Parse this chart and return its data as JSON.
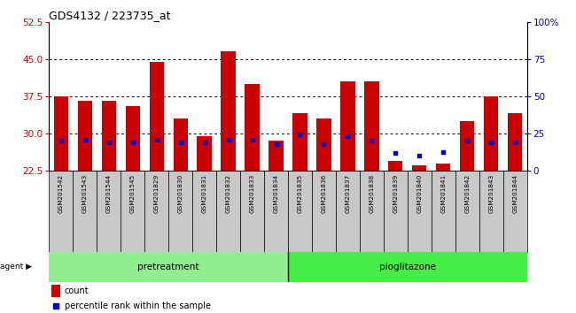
{
  "title": "GDS4132 / 223735_at",
  "samples": [
    "GSM201542",
    "GSM201543",
    "GSM201544",
    "GSM201545",
    "GSM201829",
    "GSM201830",
    "GSM201831",
    "GSM201832",
    "GSM201833",
    "GSM201834",
    "GSM201835",
    "GSM201836",
    "GSM201837",
    "GSM201838",
    "GSM201839",
    "GSM201840",
    "GSM201841",
    "GSM201842",
    "GSM201843",
    "GSM201844"
  ],
  "count_values": [
    37.5,
    36.5,
    36.5,
    35.5,
    44.5,
    33.0,
    29.5,
    46.5,
    40.0,
    28.5,
    34.0,
    33.0,
    40.5,
    40.5,
    24.5,
    23.5,
    24.0,
    32.5,
    37.5,
    34.0
  ],
  "percentile_values": [
    28.5,
    28.8,
    28.2,
    28.2,
    28.8,
    28.2,
    28.2,
    28.8,
    28.8,
    27.8,
    29.8,
    27.8,
    29.5,
    28.5,
    26.0,
    25.5,
    26.2,
    28.5,
    28.2,
    28.2
  ],
  "ylim_left": [
    22.5,
    52.5
  ],
  "yticks_left": [
    22.5,
    30.0,
    37.5,
    45.0,
    52.5
  ],
  "ylim_right": [
    0,
    100
  ],
  "yticks_right": [
    0,
    25,
    50,
    75,
    100
  ],
  "ytick_right_labels": [
    "0",
    "25",
    "50",
    "75",
    "100%"
  ],
  "pretreatment_color": "#90ee90",
  "pioglitazone_color": "#44ee44",
  "bar_color": "#cc0000",
  "percentile_color": "#0000cc",
  "bg_color": "#c8c8c8",
  "title_color": "#000000",
  "left_tick_color": "#cc0000",
  "right_tick_color": "#0000cc",
  "legend_count_color": "#cc0000",
  "legend_pct_color": "#0000cc",
  "bar_width": 0.6,
  "n_pretreatment": 10,
  "n_total": 20
}
